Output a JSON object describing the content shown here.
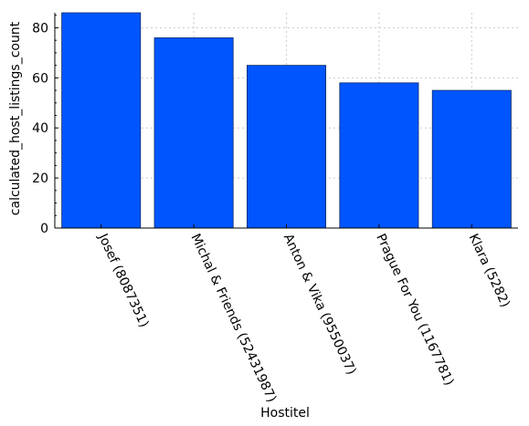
{
  "chart_data": {
    "type": "bar",
    "title": "",
    "xlabel": "Hostitel",
    "ylabel": "calculated_host_listings_count",
    "categories": [
      "Josef (8087351)",
      "Michal & Friends (52431987)",
      "Anton & Vika (9550037)",
      "Prague For You (1167781)",
      "Klara (5282)"
    ],
    "values": [
      86,
      76,
      65,
      58,
      55
    ],
    "yticks": [
      0,
      20,
      40,
      60,
      80
    ],
    "ylim": [
      0,
      86
    ],
    "grid": true,
    "bar_color": "#0055ff",
    "legend": "none"
  }
}
